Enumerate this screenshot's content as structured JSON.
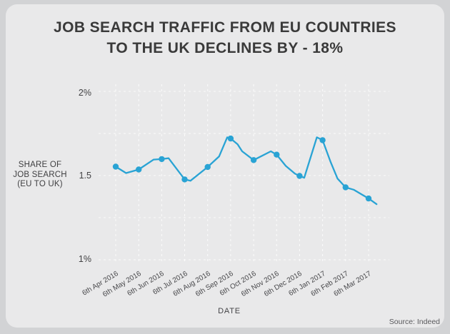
{
  "card": {
    "title_line1": "JOB SEARCH TRAFFIC FROM EU COUNTRIES",
    "title_line2": "TO THE UK DECLINES BY - 18%",
    "source": "Source: Indeed"
  },
  "chart_data": {
    "type": "line",
    "title": "JOB SEARCH TRAFFIC FROM EU COUNTRIES TO THE UK DECLINES BY - 18%",
    "ylabel": "SHARE OF\nJOB SEARCH\n(EU TO UK)",
    "xlabel": "DATE",
    "series_name": "Share of job search from EU to UK (%)",
    "categories": [
      "6th Apr 2016",
      "6th May 2016",
      "6th Jun 2016",
      "6th Jul 2016",
      "6th Aug 2016",
      "6th Sep 2016",
      "6th Oct 2016",
      "6th Nov 2016",
      "6th Dec 2016",
      "6th Jan 2017",
      "6th Feb 2017",
      "6th Mar 2017"
    ],
    "values": [
      1.55,
      1.54,
      1.6,
      1.48,
      1.55,
      1.72,
      1.59,
      1.62,
      1.5,
      1.71,
      1.43,
      1.36
    ],
    "detail_points": [
      [
        0,
        1.553
      ],
      [
        0.45,
        1.515
      ],
      [
        1,
        1.536
      ],
      [
        1.65,
        1.595
      ],
      [
        2,
        1.598
      ],
      [
        2.3,
        1.603
      ],
      [
        3,
        1.477
      ],
      [
        3.25,
        1.469
      ],
      [
        4,
        1.551
      ],
      [
        4.5,
        1.614
      ],
      [
        4.85,
        1.727
      ],
      [
        5,
        1.72
      ],
      [
        5.3,
        1.686
      ],
      [
        5.5,
        1.644
      ],
      [
        6,
        1.592
      ],
      [
        6.75,
        1.644
      ],
      [
        7,
        1.624
      ],
      [
        7.4,
        1.557
      ],
      [
        7.8,
        1.511
      ],
      [
        8,
        1.498
      ],
      [
        8.2,
        1.487
      ],
      [
        8.75,
        1.727
      ],
      [
        9,
        1.71
      ],
      [
        9.35,
        1.58
      ],
      [
        9.65,
        1.482
      ],
      [
        10,
        1.43
      ],
      [
        10.35,
        1.416
      ],
      [
        11,
        1.364
      ],
      [
        11.35,
        1.33
      ]
    ],
    "yticks": [
      {
        "value": 2,
        "label": "2%"
      },
      {
        "value": 1.5,
        "label": "1.5"
      },
      {
        "value": 1,
        "label": "1%"
      }
    ],
    "grid_values_y": [
      2,
      1.75,
      1.5,
      1.25,
      1
    ],
    "ylim": [
      1,
      2
    ],
    "grid": true,
    "legend_position": "none",
    "line_color": "#29a3d4",
    "grid_color": "#ffffff"
  }
}
